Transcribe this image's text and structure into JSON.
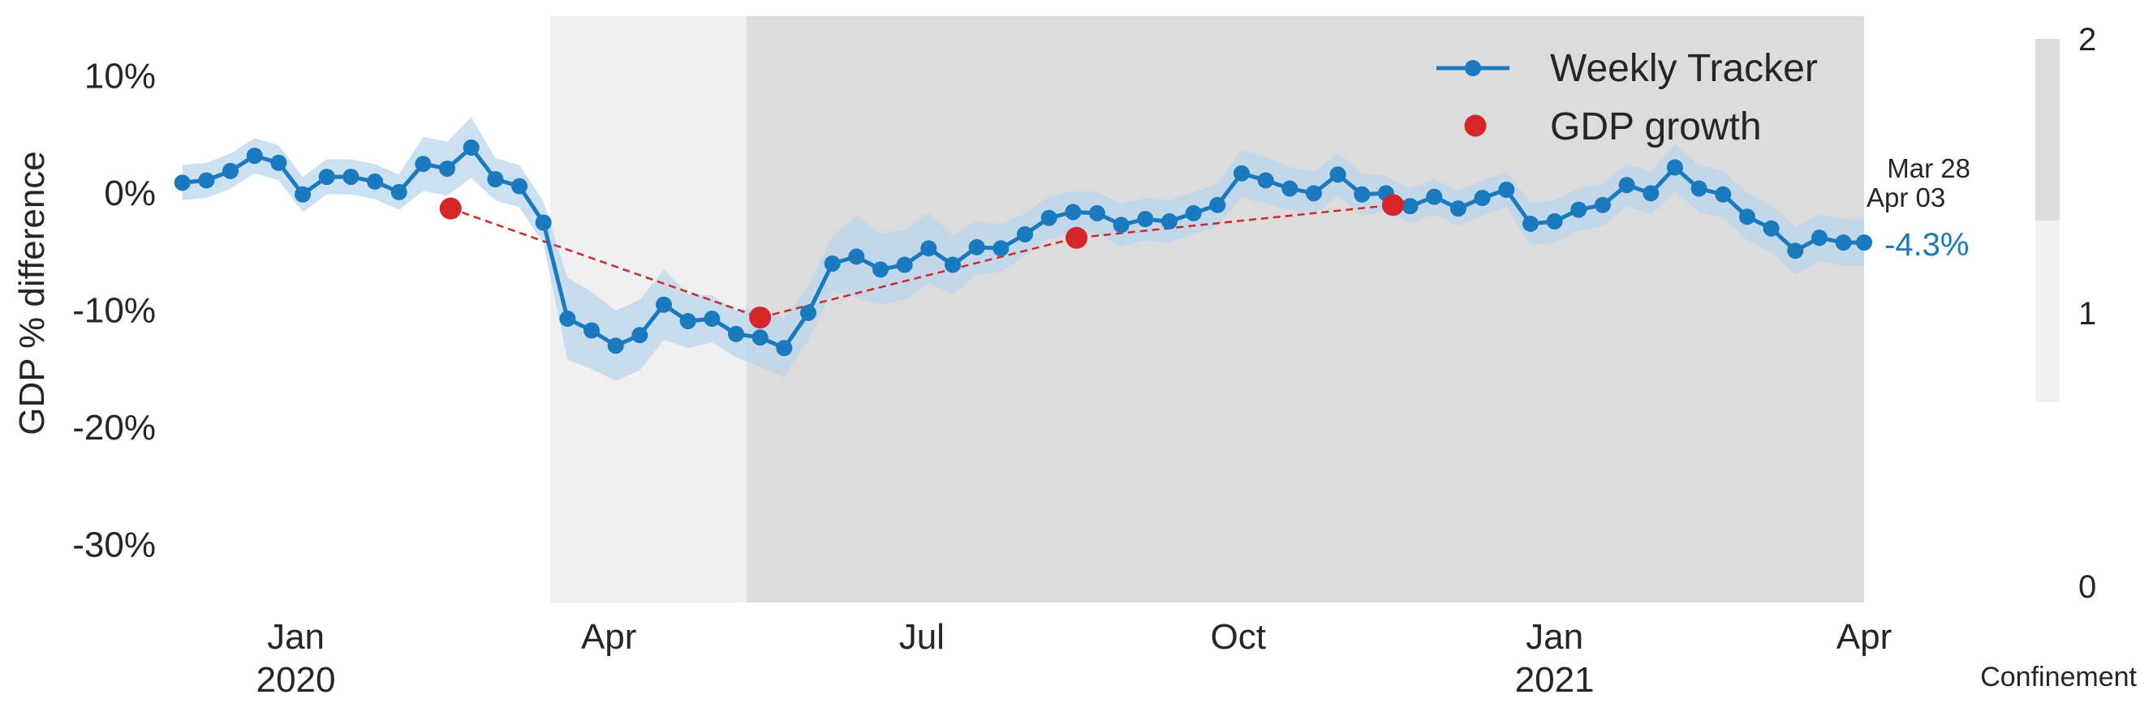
{
  "chart_data": {
    "type": "line",
    "ylabel": "GDP % difference",
    "ylim": [
      -35,
      15
    ],
    "y_ticks": [
      10,
      0,
      -10,
      -20,
      -30
    ],
    "y_tick_labels": [
      "10%",
      "0%",
      "-10%",
      "-20%",
      "-30%"
    ],
    "x_range": [
      "2019-11-26",
      "2021-04-01"
    ],
    "x_ticks": [
      {
        "date": "2020-01-01",
        "label": "Jan",
        "year": "2020"
      },
      {
        "date": "2020-04-01",
        "label": "Apr",
        "year": ""
      },
      {
        "date": "2020-07-01",
        "label": "Jul",
        "year": ""
      },
      {
        "date": "2020-10-01",
        "label": "Oct",
        "year": ""
      },
      {
        "date": "2021-01-01",
        "label": "Jan",
        "year": "2021"
      },
      {
        "date": "2021-04-01",
        "label": "Apr",
        "year": ""
      }
    ],
    "grid": false,
    "legend_position": "top-right",
    "confinement_periods": [
      {
        "start": "2020-03-15",
        "end": "2020-05-11",
        "level": 1
      },
      {
        "start": "2020-05-11",
        "end": "2021-04-01",
        "level": 2
      }
    ],
    "series": [
      {
        "name": "Weekly Tracker",
        "color": "#1a7abf",
        "band_color": "#b9d6ec",
        "x": [
          "2019-11-29",
          "2019-12-06",
          "2019-12-13",
          "2019-12-20",
          "2019-12-27",
          "2020-01-03",
          "2020-01-10",
          "2020-01-17",
          "2020-01-24",
          "2020-01-31",
          "2020-02-07",
          "2020-02-14",
          "2020-02-21",
          "2020-02-28",
          "2020-03-06",
          "2020-03-13",
          "2020-03-20",
          "2020-03-27",
          "2020-04-03",
          "2020-04-10",
          "2020-04-17",
          "2020-04-24",
          "2020-05-01",
          "2020-05-08",
          "2020-05-15",
          "2020-05-22",
          "2020-05-29",
          "2020-06-05",
          "2020-06-12",
          "2020-06-19",
          "2020-06-26",
          "2020-07-03",
          "2020-07-10",
          "2020-07-17",
          "2020-07-24",
          "2020-07-31",
          "2020-08-07",
          "2020-08-14",
          "2020-08-21",
          "2020-08-28",
          "2020-09-04",
          "2020-09-11",
          "2020-09-18",
          "2020-09-25",
          "2020-10-02",
          "2020-10-09",
          "2020-10-16",
          "2020-10-23",
          "2020-10-30",
          "2020-11-06",
          "2020-11-13",
          "2020-11-20",
          "2020-11-27",
          "2020-12-04",
          "2020-12-11",
          "2020-12-18",
          "2020-12-25",
          "2021-01-01",
          "2021-01-08",
          "2021-01-15",
          "2021-01-22",
          "2021-01-29",
          "2021-02-05",
          "2021-02-12",
          "2021-02-19",
          "2021-02-26",
          "2021-03-05",
          "2021-03-12",
          "2021-03-19",
          "2021-03-26",
          "2021-04-01"
        ],
        "y": [
          0.8,
          1.0,
          1.8,
          3.1,
          2.5,
          -0.2,
          1.3,
          1.3,
          0.9,
          0.0,
          2.4,
          2.0,
          3.8,
          1.1,
          0.5,
          -2.6,
          -10.8,
          -11.8,
          -13.1,
          -12.2,
          -9.6,
          -11.0,
          -10.8,
          -12.1,
          -12.4,
          -13.3,
          -10.3,
          -6.1,
          -5.5,
          -6.6,
          -6.2,
          -4.8,
          -6.2,
          -4.7,
          -4.8,
          -3.6,
          -2.2,
          -1.7,
          -1.8,
          -2.8,
          -2.3,
          -2.5,
          -1.8,
          -1.1,
          1.6,
          1.0,
          0.3,
          -0.1,
          1.5,
          -0.2,
          -0.1,
          -1.2,
          -0.4,
          -1.4,
          -0.5,
          0.2,
          -2.7,
          -2.5,
          -1.5,
          -1.1,
          0.6,
          -0.1,
          2.1,
          0.3,
          -0.2,
          -2.1,
          -3.1,
          -5.0,
          -3.9,
          -4.3,
          -4.3
        ],
        "band_halfwidth": [
          1.5,
          1.5,
          1.5,
          1.5,
          1.5,
          1.5,
          1.5,
          1.5,
          1.5,
          1.5,
          2.3,
          2.3,
          2.6,
          1.8,
          1.8,
          1.8,
          3.5,
          3.3,
          3.0,
          3.0,
          3.0,
          2.3,
          2.0,
          2.0,
          2.5,
          2.5,
          2.3,
          2.3,
          3.5,
          3.0,
          3.0,
          3.0,
          2.5,
          2.3,
          2.0,
          1.8,
          1.8,
          1.8,
          1.8,
          1.8,
          1.8,
          1.8,
          1.8,
          1.8,
          2.0,
          2.0,
          1.8,
          1.8,
          1.8,
          1.8,
          1.5,
          1.5,
          1.5,
          1.5,
          1.5,
          1.5,
          1.8,
          1.8,
          1.8,
          1.8,
          1.8,
          1.8,
          2.0,
          2.0,
          2.0,
          2.0,
          2.0,
          2.0,
          2.0,
          2.0,
          2.0
        ]
      },
      {
        "name": "GDP growth",
        "color": "#d62728",
        "x": [
          "2020-02-15",
          "2020-05-15",
          "2020-08-15",
          "2020-11-15"
        ],
        "y": [
          -1.4,
          -10.7,
          -3.9,
          -1.1
        ]
      }
    ],
    "annotations": {
      "date_last": "Mar 28",
      "date_current": "Apr 03",
      "latest_value": "-4.3%"
    },
    "colorbar": {
      "title": "Confinement",
      "ticks": [
        "2",
        "1",
        "0"
      ],
      "colors": [
        "#dcdcdc",
        "#f0f0f0"
      ]
    }
  }
}
